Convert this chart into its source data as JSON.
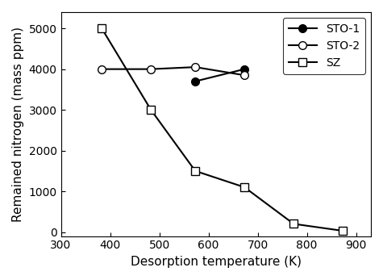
{
  "STO1": {
    "x": [
      573,
      673
    ],
    "y": [
      3700,
      4000
    ],
    "label": "STO-1",
    "color": "black",
    "marker": "o",
    "markerfacecolor": "black",
    "linewidth": 1.5
  },
  "STO2": {
    "x": [
      383,
      483,
      573,
      673
    ],
    "y": [
      4000,
      4000,
      4050,
      3850
    ],
    "label": "STO-2",
    "color": "black",
    "marker": "o",
    "markerfacecolor": "white",
    "linewidth": 1.5
  },
  "SZ": {
    "x": [
      383,
      483,
      573,
      673,
      773,
      873
    ],
    "y": [
      5000,
      3000,
      1500,
      1100,
      200,
      30
    ],
    "label": "SZ",
    "color": "black",
    "marker": "s",
    "markerfacecolor": "white",
    "linewidth": 1.5
  },
  "xlabel": "Desorption temperature (K)",
  "ylabel": "Remained nitrogen (mass ppm)",
  "xlim": [
    300,
    930
  ],
  "ylim": [
    -100,
    5400
  ],
  "xticks": [
    300,
    400,
    500,
    600,
    700,
    800,
    900
  ],
  "yticks": [
    0,
    1000,
    2000,
    3000,
    4000,
    5000
  ],
  "legend_loc": "upper right",
  "figsize": [
    4.75,
    3.47
  ],
  "dpi": 100
}
